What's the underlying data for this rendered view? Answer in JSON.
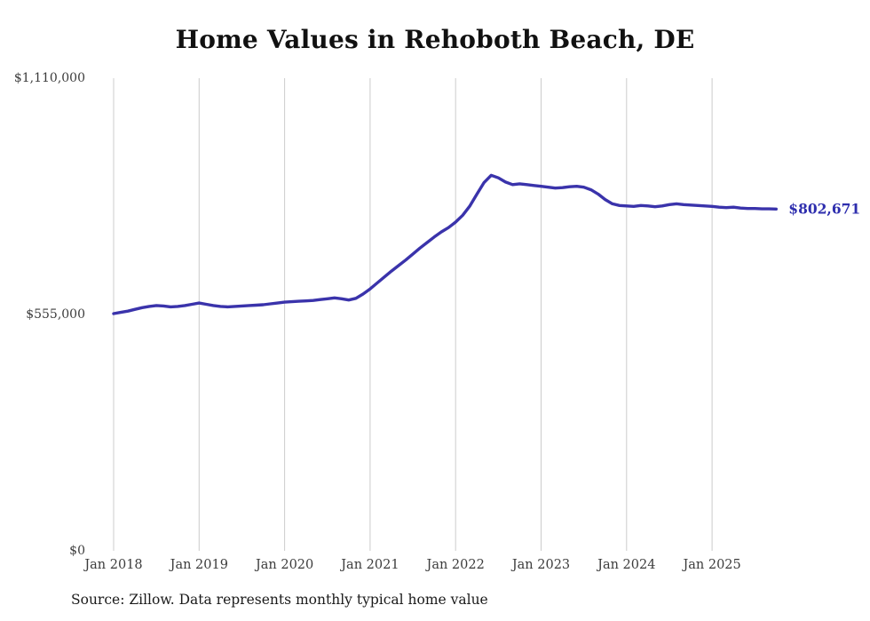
{
  "chart_data": {
    "type": "line",
    "title": "Home Values in Rehoboth Beach, DE",
    "source": "Source: Zillow. Data represents monthly typical home value",
    "xlabel": "",
    "ylabel": "",
    "ylim": [
      0,
      1110000
    ],
    "grid": "vertical-only",
    "legend": "none",
    "end_label": "$802,671",
    "end_value": 802671,
    "colors": {
      "line": "#3a33ab",
      "grid": "#cccccc",
      "axis_text": "#3c3c3c",
      "end_label": "#2e2eae"
    },
    "yticks": [
      {
        "label": "$1,110,000",
        "value": 1110000
      },
      {
        "label": "$555,000",
        "value": 555000
      },
      {
        "label": "$0",
        "value": 0
      }
    ],
    "xticks": [
      {
        "label": "Jan 2018",
        "index": 0
      },
      {
        "label": "Jan 2019",
        "index": 12
      },
      {
        "label": "Jan 2020",
        "index": 24
      },
      {
        "label": "Jan 2021",
        "index": 36
      },
      {
        "label": "Jan 2022",
        "index": 48
      },
      {
        "label": "Jan 2023",
        "index": 60
      },
      {
        "label": "Jan 2024",
        "index": 72
      },
      {
        "label": "Jan 2025",
        "index": 84
      }
    ],
    "series": [
      {
        "name": "Typical home value",
        "color": "#3a33ab",
        "x": [
          "2018-01",
          "2018-02",
          "2018-03",
          "2018-04",
          "2018-05",
          "2018-06",
          "2018-07",
          "2018-08",
          "2018-09",
          "2018-10",
          "2018-11",
          "2018-12",
          "2019-01",
          "2019-02",
          "2019-03",
          "2019-04",
          "2019-05",
          "2019-06",
          "2019-07",
          "2019-08",
          "2019-09",
          "2019-10",
          "2019-11",
          "2019-12",
          "2020-01",
          "2020-02",
          "2020-03",
          "2020-04",
          "2020-05",
          "2020-06",
          "2020-07",
          "2020-08",
          "2020-09",
          "2020-10",
          "2020-11",
          "2020-12",
          "2021-01",
          "2021-02",
          "2021-03",
          "2021-04",
          "2021-05",
          "2021-06",
          "2021-07",
          "2021-08",
          "2021-09",
          "2021-10",
          "2021-11",
          "2021-12",
          "2022-01",
          "2022-02",
          "2022-03",
          "2022-04",
          "2022-05",
          "2022-06",
          "2022-07",
          "2022-08",
          "2022-09",
          "2022-10",
          "2022-11",
          "2022-12",
          "2023-01",
          "2023-02",
          "2023-03",
          "2023-04",
          "2023-05",
          "2023-06",
          "2023-07",
          "2023-08",
          "2023-09",
          "2023-10",
          "2023-11",
          "2023-12",
          "2024-01",
          "2024-02",
          "2024-03",
          "2024-04",
          "2024-05",
          "2024-06",
          "2024-07",
          "2024-08",
          "2024-09",
          "2024-10",
          "2024-11",
          "2024-12",
          "2025-01",
          "2025-02",
          "2025-03",
          "2025-04",
          "2025-05",
          "2025-06",
          "2025-07",
          "2025-08",
          "2025-09",
          "2025-10"
        ],
        "values": [
          557000,
          560000,
          563000,
          567000,
          571000,
          574000,
          576000,
          575000,
          573000,
          574000,
          576000,
          579000,
          582000,
          579000,
          576000,
          574000,
          573000,
          574000,
          575000,
          576000,
          577000,
          578000,
          580000,
          582000,
          584000,
          585000,
          586000,
          587000,
          588000,
          590000,
          592000,
          594000,
          592000,
          589000,
          593000,
          603000,
          615000,
          629000,
          643000,
          657000,
          670000,
          683000,
          697000,
          711000,
          724000,
          737000,
          749000,
          759000,
          772000,
          788000,
          810000,
          838000,
          865000,
          882000,
          876000,
          866000,
          860000,
          862000,
          860000,
          858000,
          856000,
          854000,
          852000,
          853000,
          855000,
          856000,
          854000,
          848000,
          838000,
          825000,
          815000,
          811000,
          810000,
          809000,
          811000,
          810000,
          808000,
          810000,
          813000,
          815000,
          813000,
          812000,
          811000,
          810000,
          809000,
          807000,
          806000,
          807000,
          805000,
          804000,
          804000,
          803000,
          803000,
          802671
        ]
      }
    ]
  }
}
